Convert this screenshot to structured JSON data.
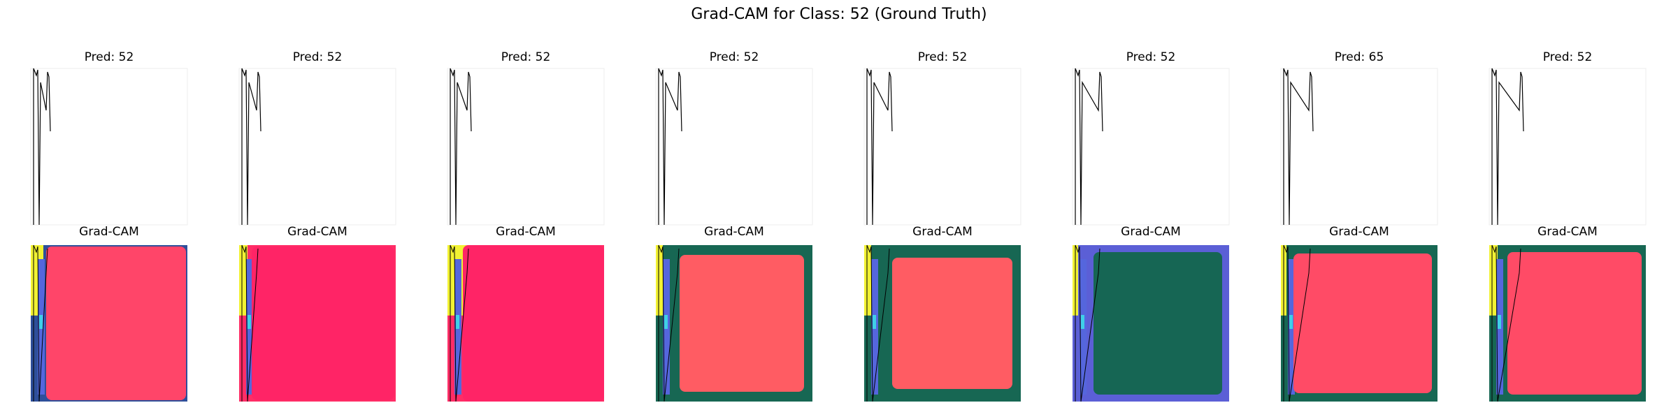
{
  "title": "Grad-CAM for Class: 52 (Ground Truth)",
  "panels": [
    {
      "pred": "Pred: 52",
      "cam": "Grad-CAM"
    },
    {
      "pred": "Pred: 52",
      "cam": "Grad-CAM"
    },
    {
      "pred": "Pred: 52",
      "cam": "Grad-CAM"
    },
    {
      "pred": "Pred: 52",
      "cam": "Grad-CAM"
    },
    {
      "pred": "Pred: 52",
      "cam": "Grad-CAM"
    },
    {
      "pred": "Pred: 52",
      "cam": "Grad-CAM"
    },
    {
      "pred": "Pred: 65",
      "cam": "Grad-CAM"
    },
    {
      "pred": "Pred: 52",
      "cam": "Grad-CAM"
    }
  ]
}
